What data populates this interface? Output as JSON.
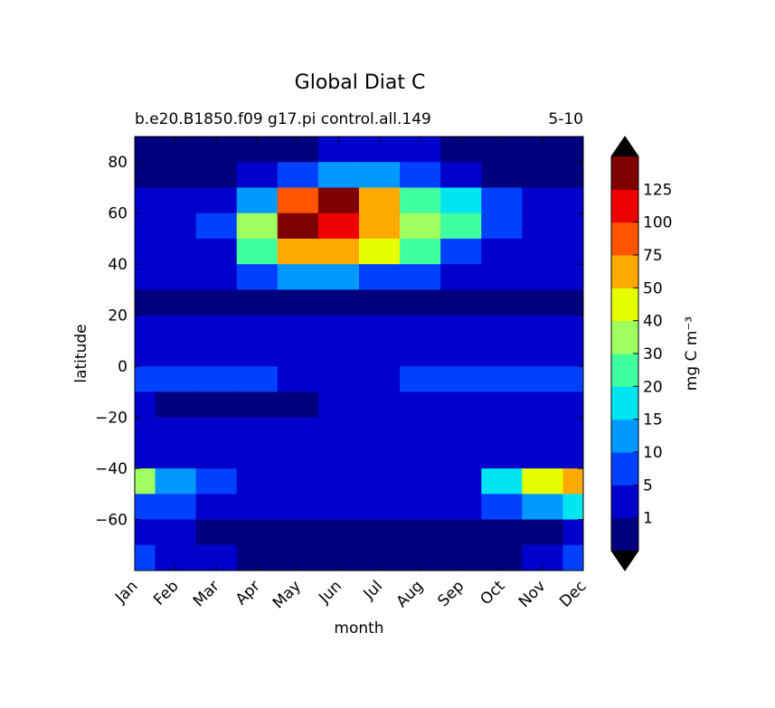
{
  "chart_data": {
    "type": "contour",
    "title": "Global Diat C",
    "subtitle": "b.e20.B1850.f09 g17.pi control.all.149",
    "subtitle_right": "5-10",
    "x_label": "month",
    "y_label": "latitude",
    "colorbar_label": "mg C m⁻³",
    "categories": [
      "Jan",
      "Feb",
      "Mar",
      "Apr",
      "May",
      "Jun",
      "Jul",
      "Aug",
      "Sep",
      "Oct",
      "Nov",
      "Dec"
    ],
    "ylim": [
      -80,
      90
    ],
    "yticks": [
      {
        "value": -60,
        "label": "−60"
      },
      {
        "value": -40,
        "label": "−40"
      },
      {
        "value": -20,
        "label": "−20"
      },
      0,
      20,
      40,
      60,
      80
    ],
    "lat": [
      85,
      75,
      65,
      55,
      45,
      35,
      25,
      15,
      5,
      -5,
      -15,
      -25,
      -35,
      -45,
      -55,
      -65,
      -75
    ],
    "z": [
      [
        0.5,
        0.5,
        0.5,
        0.5,
        0.5,
        3,
        3,
        3,
        0.5,
        0.5,
        0.5,
        0.5
      ],
      [
        0.5,
        0.5,
        0.5,
        3,
        8,
        12,
        10,
        8,
        4,
        0.5,
        0.5,
        0.5
      ],
      [
        3,
        3,
        4,
        12,
        80,
        160,
        60,
        25,
        18,
        5,
        3,
        3
      ],
      [
        3,
        3,
        5,
        30,
        130,
        110,
        55,
        35,
        25,
        5,
        3,
        3
      ],
      [
        3,
        3,
        4,
        20,
        60,
        60,
        40,
        25,
        8,
        4,
        3,
        3
      ],
      [
        3,
        3,
        3,
        8,
        12,
        12,
        8,
        6,
        4,
        3,
        3,
        3
      ],
      [
        0.5,
        0.5,
        0.5,
        0.5,
        0.5,
        0.5,
        0.5,
        0.5,
        0.5,
        0.5,
        0.5,
        0.5
      ],
      [
        3,
        3,
        3,
        3,
        3,
        3,
        3,
        3,
        3,
        3,
        3,
        3
      ],
      [
        3,
        3,
        3,
        3,
        3,
        3,
        3,
        3,
        3,
        3,
        3,
        3
      ],
      [
        6,
        6,
        5,
        5,
        4,
        4,
        4,
        5,
        6,
        6,
        6,
        6
      ],
      [
        3,
        0.5,
        0.5,
        0.5,
        0.5,
        3,
        3,
        3,
        3,
        3,
        3,
        3
      ],
      [
        3,
        3,
        3,
        3,
        3,
        3,
        3,
        3,
        3,
        3,
        3,
        3
      ],
      [
        3,
        3,
        3,
        3,
        3,
        3,
        3,
        3,
        3,
        3,
        3,
        3
      ],
      [
        35,
        12,
        8,
        3,
        3,
        3,
        3,
        3,
        3,
        15,
        45,
        55
      ],
      [
        6,
        5,
        3,
        3,
        3,
        3,
        3,
        3,
        3,
        8,
        12,
        15
      ],
      [
        3,
        3,
        0.5,
        0.5,
        0.5,
        0.5,
        0.5,
        0.5,
        0.5,
        0.5,
        0.5,
        3
      ],
      [
        5,
        3,
        3,
        0.5,
        0.5,
        0.5,
        0.5,
        0.5,
        0.5,
        0.5,
        3,
        5
      ]
    ],
    "levels": [
      1,
      5,
      10,
      15,
      20,
      30,
      40,
      50,
      75,
      100,
      125
    ],
    "colors": [
      "#00007f",
      "#0000cd",
      "#0040ff",
      "#0099ff",
      "#00e5f0",
      "#40ff9f",
      "#9fff5f",
      "#e6ff00",
      "#ffaa00",
      "#ff5500",
      "#ee0000",
      "#7f0000"
    ],
    "extend_color": "#000000"
  }
}
